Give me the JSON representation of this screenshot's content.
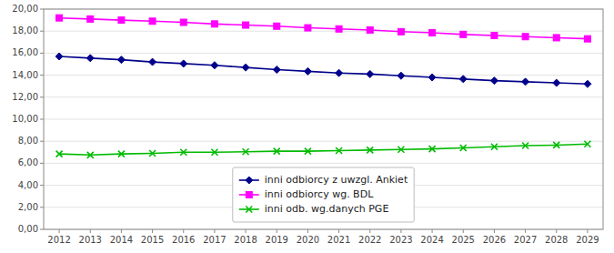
{
  "chart_data": {
    "type": "line",
    "x": [
      2012,
      2013,
      2014,
      2015,
      2016,
      2017,
      2018,
      2019,
      2020,
      2021,
      2022,
      2023,
      2024,
      2025,
      2026,
      2027,
      2028,
      2029
    ],
    "xlim": [
      2011.5,
      2029.5
    ],
    "xticks": [
      2012,
      2013,
      2014,
      2015,
      2016,
      2017,
      2018,
      2019,
      2020,
      2021,
      2022,
      2023,
      2024,
      2025,
      2026,
      2027,
      2028,
      2029
    ],
    "ylim": [
      0,
      20
    ],
    "yticks": [
      {
        "value": 0.0,
        "label": "0,00"
      },
      {
        "value": 2.0,
        "label": "2,00"
      },
      {
        "value": 4.0,
        "label": "4,00"
      },
      {
        "value": 6.0,
        "label": "6,00"
      },
      {
        "value": 8.0,
        "label": "8,00"
      },
      {
        "value": 10.0,
        "label": "10,00"
      },
      {
        "value": 12.0,
        "label": "12,00"
      },
      {
        "value": 14.0,
        "label": "14,00"
      },
      {
        "value": 16.0,
        "label": "16,00"
      },
      {
        "value": 18.0,
        "label": "18,00"
      },
      {
        "value": 20.0,
        "label": "20,00"
      }
    ],
    "grid": true,
    "legend": "lower center",
    "series": [
      {
        "name": "inni odbiorcy z uwzgl. Ankiet",
        "color": "#00008B",
        "marker": "diamond",
        "values": [
          15.7,
          15.55,
          15.4,
          15.2,
          15.05,
          14.9,
          14.7,
          14.5,
          14.35,
          14.2,
          14.1,
          13.95,
          13.8,
          13.65,
          13.5,
          13.4,
          13.3,
          13.2
        ]
      },
      {
        "name": "inni odbiorcy wg. BDL",
        "color": "#FF00FF",
        "marker": "square",
        "values": [
          19.2,
          19.1,
          19.0,
          18.9,
          18.8,
          18.65,
          18.55,
          18.45,
          18.3,
          18.2,
          18.1,
          17.95,
          17.85,
          17.7,
          17.6,
          17.5,
          17.4,
          17.3
        ]
      },
      {
        "name": "inni odb. wg.danych PGE",
        "color": "#00BB00",
        "marker": "x",
        "values": [
          6.85,
          6.75,
          6.85,
          6.9,
          7.0,
          7.0,
          7.05,
          7.1,
          7.1,
          7.15,
          7.2,
          7.25,
          7.3,
          7.4,
          7.5,
          7.6,
          7.65,
          7.75
        ]
      }
    ]
  }
}
